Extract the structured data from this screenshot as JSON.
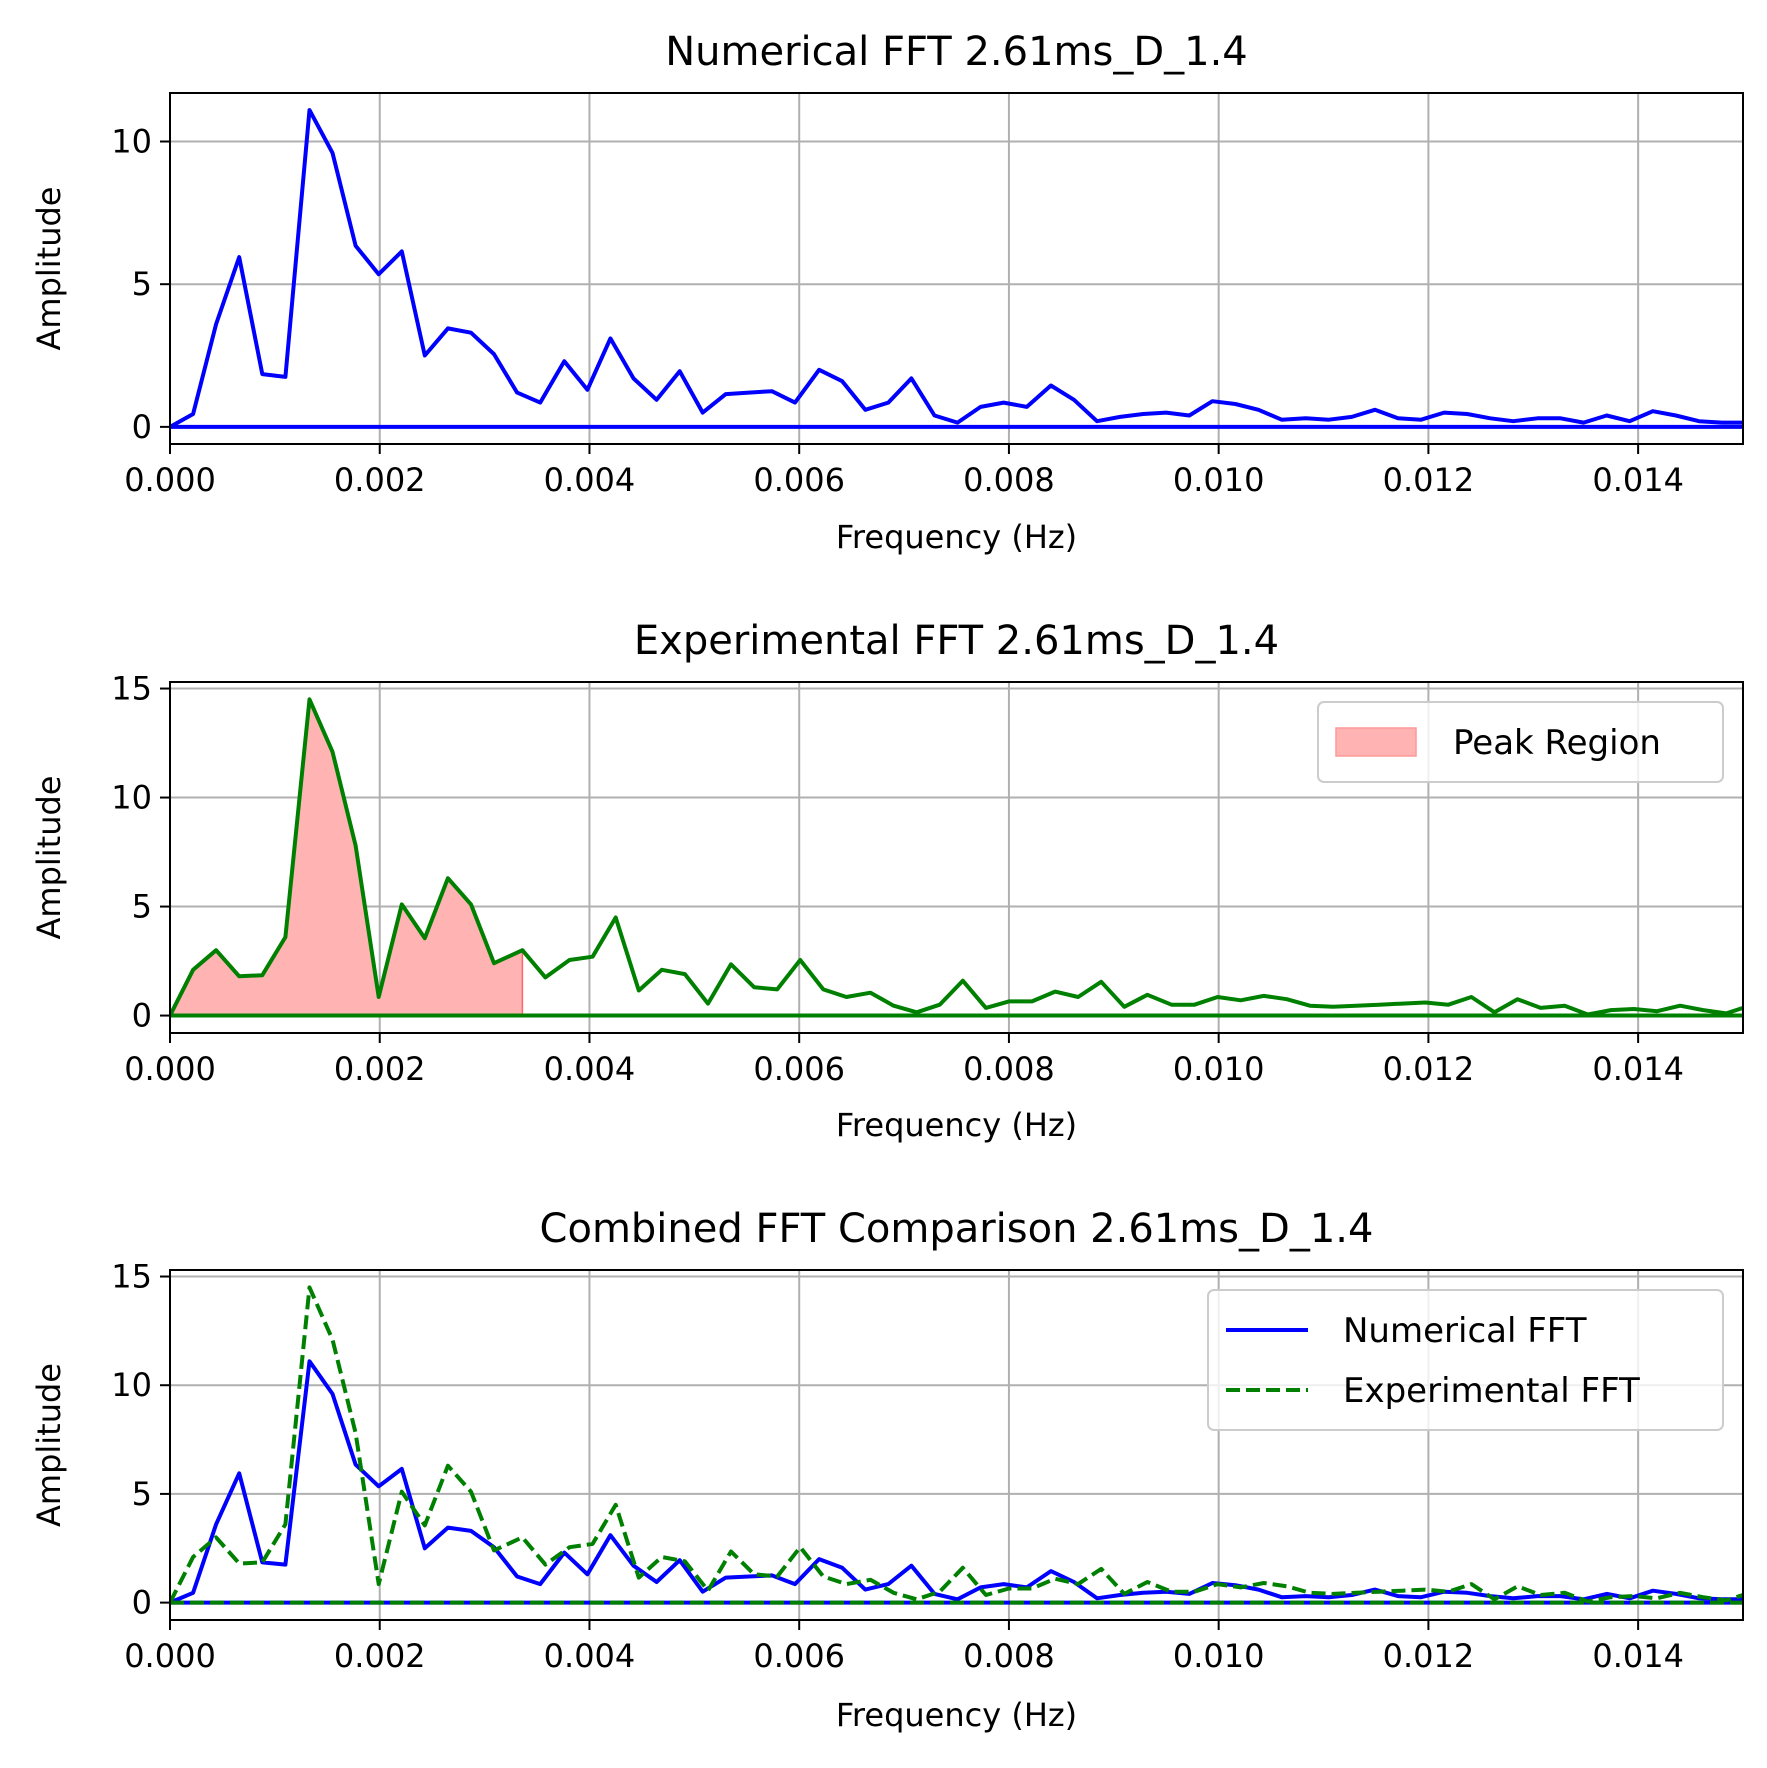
{
  "chart_data": [
    {
      "type": "line",
      "title": "Numerical FFT 2.61ms_D_1.4",
      "xlabel": "Frequency (Hz)",
      "ylabel": "Amplitude",
      "xlim": [
        0,
        0.015
      ],
      "ylim": [
        -0.6,
        11.7
      ],
      "xticks": [
        0,
        0.002,
        0.004,
        0.006,
        0.008,
        0.01,
        0.012,
        0.014
      ],
      "xtick_labels": [
        "0.000",
        "0.002",
        "0.004",
        "0.006",
        "0.008",
        "0.010",
        "0.012",
        "0.014"
      ],
      "yticks": [
        0,
        5,
        10
      ],
      "ytick_labels": [
        "0",
        "5",
        "10"
      ],
      "grid": true,
      "legend": null,
      "series": [
        {
          "color": "#0000ff",
          "dash": "solid",
          "x": [
            0,
            0.00022,
            0.00044,
            0.00066,
            0.00088,
            0.0011,
            0.00133,
            0.00155,
            0.00177,
            0.00199,
            0.00221,
            0.00243,
            0.00265,
            0.00287,
            0.00309,
            0.00331,
            0.00353,
            0.00376,
            0.00398,
            0.0042,
            0.00442,
            0.00464,
            0.00486,
            0.00508,
            0.0053,
            0.00552,
            0.00574,
            0.00596,
            0.00619,
            0.00641,
            0.00663,
            0.00685,
            0.00707,
            0.00729,
            0.00751,
            0.00773,
            0.00795,
            0.00817,
            0.0084,
            0.00862,
            0.00884,
            0.00906,
            0.00928,
            0.0095,
            0.00972,
            0.00994,
            0.01016,
            0.01038,
            0.0106,
            0.01083,
            0.01105,
            0.01127,
            0.01149,
            0.01171,
            0.01193,
            0.01215,
            0.01237,
            0.01259,
            0.01281,
            0.01304,
            0.01326,
            0.01348,
            0.0137,
            0.01392,
            0.01414,
            0.01436,
            0.01458,
            0.0148,
            0.015
          ],
          "y": [
            0,
            0.45,
            3.6,
            5.95,
            1.85,
            1.75,
            11.1,
            9.6,
            6.35,
            5.35,
            6.15,
            2.5,
            3.45,
            3.3,
            2.55,
            1.2,
            0.85,
            2.3,
            1.3,
            3.1,
            1.7,
            0.95,
            1.95,
            0.5,
            1.15,
            1.2,
            1.25,
            0.85,
            2.0,
            1.6,
            0.6,
            0.85,
            1.7,
            0.4,
            0.15,
            0.7,
            0.85,
            0.7,
            1.45,
            0.95,
            0.2,
            0.35,
            0.45,
            0.5,
            0.4,
            0.9,
            0.8,
            0.6,
            0.25,
            0.3,
            0.25,
            0.35,
            0.6,
            0.3,
            0.25,
            0.5,
            0.45,
            0.3,
            0.2,
            0.3,
            0.3,
            0.15,
            0.4,
            0.2,
            0.55,
            0.4,
            0.2,
            0.15,
            0.15
          ]
        }
      ]
    },
    {
      "type": "area",
      "title": "Experimental FFT 2.61ms_D_1.4",
      "xlabel": "Frequency (Hz)",
      "ylabel": "Amplitude",
      "xlim": [
        0,
        0.015
      ],
      "ylim": [
        -0.8,
        15.3
      ],
      "xticks": [
        0,
        0.002,
        0.004,
        0.006,
        0.008,
        0.01,
        0.012,
        0.014
      ],
      "xtick_labels": [
        "0.000",
        "0.002",
        "0.004",
        "0.006",
        "0.008",
        "0.010",
        "0.012",
        "0.014"
      ],
      "yticks": [
        0,
        5,
        10,
        15
      ],
      "ytick_labels": [
        "0",
        "5",
        "10",
        "15"
      ],
      "grid": true,
      "legend": {
        "placement": "top-right",
        "entries": [
          {
            "label": "Peak Region",
            "kind": "patch",
            "color": "#ff9999"
          }
        ]
      },
      "shaded_region": {
        "label": "Peak Region",
        "x_end": 0.00336,
        "color": "#ffb3b3"
      },
      "series": [
        {
          "color": "#008000",
          "dash": "solid",
          "x": [
            0,
            0.00022,
            0.00044,
            0.00066,
            0.00088,
            0.0011,
            0.00133,
            0.00155,
            0.00177,
            0.00199,
            0.00221,
            0.00243,
            0.00265,
            0.00287,
            0.00309,
            0.00336,
            0.00358,
            0.00381,
            0.00403,
            0.00425,
            0.00447,
            0.00469,
            0.00491,
            0.00513,
            0.00535,
            0.00557,
            0.00579,
            0.00601,
            0.00623,
            0.00645,
            0.00668,
            0.0069,
            0.00712,
            0.00734,
            0.00756,
            0.00778,
            0.008,
            0.00822,
            0.00844,
            0.00866,
            0.00888,
            0.0091,
            0.00932,
            0.00955,
            0.00977,
            0.00999,
            0.01021,
            0.01043,
            0.01065,
            0.01087,
            0.01109,
            0.01131,
            0.01153,
            0.01175,
            0.01197,
            0.01219,
            0.01241,
            0.01263,
            0.01285,
            0.01307,
            0.0133,
            0.01352,
            0.01374,
            0.01396,
            0.01418,
            0.0144,
            0.01462,
            0.01484,
            0.015
          ],
          "y": [
            0,
            2.1,
            3.0,
            1.8,
            1.85,
            3.6,
            14.5,
            12.1,
            7.8,
            0.85,
            5.1,
            3.55,
            6.3,
            5.1,
            2.4,
            3.0,
            1.75,
            2.55,
            2.7,
            4.5,
            1.15,
            2.1,
            1.9,
            0.55,
            2.35,
            1.3,
            1.2,
            2.55,
            1.2,
            0.85,
            1.05,
            0.45,
            0.15,
            0.5,
            1.6,
            0.35,
            0.65,
            0.65,
            1.1,
            0.85,
            1.55,
            0.4,
            0.95,
            0.5,
            0.5,
            0.85,
            0.7,
            0.9,
            0.75,
            0.45,
            0.4,
            0.45,
            0.5,
            0.55,
            0.6,
            0.5,
            0.85,
            0.15,
            0.75,
            0.35,
            0.45,
            0.05,
            0.25,
            0.3,
            0.2,
            0.45,
            0.25,
            0.1,
            0.35
          ]
        }
      ]
    },
    {
      "type": "line",
      "title": "Combined FFT Comparison 2.61ms_D_1.4",
      "xlabel": "Frequency (Hz)",
      "ylabel": "Amplitude",
      "xlim": [
        0,
        0.015
      ],
      "ylim": [
        -0.8,
        15.3
      ],
      "xticks": [
        0,
        0.002,
        0.004,
        0.006,
        0.008,
        0.01,
        0.012,
        0.014
      ],
      "xtick_labels": [
        "0.000",
        "0.002",
        "0.004",
        "0.006",
        "0.008",
        "0.010",
        "0.012",
        "0.014"
      ],
      "yticks": [
        0,
        5,
        10,
        15
      ],
      "ytick_labels": [
        "0",
        "5",
        "10",
        "15"
      ],
      "grid": true,
      "legend": {
        "placement": "top-right",
        "entries": [
          {
            "label": "Numerical FFT",
            "kind": "line",
            "color": "#0000ff",
            "dash": "solid"
          },
          {
            "label": "Experimental FFT",
            "kind": "line",
            "color": "#008000",
            "dash": "dashed"
          }
        ]
      },
      "series_refs": [
        {
          "ref": 0,
          "color": "#0000ff",
          "dash": "solid"
        },
        {
          "ref": 1,
          "color": "#008000",
          "dash": "dashed"
        }
      ]
    }
  ]
}
